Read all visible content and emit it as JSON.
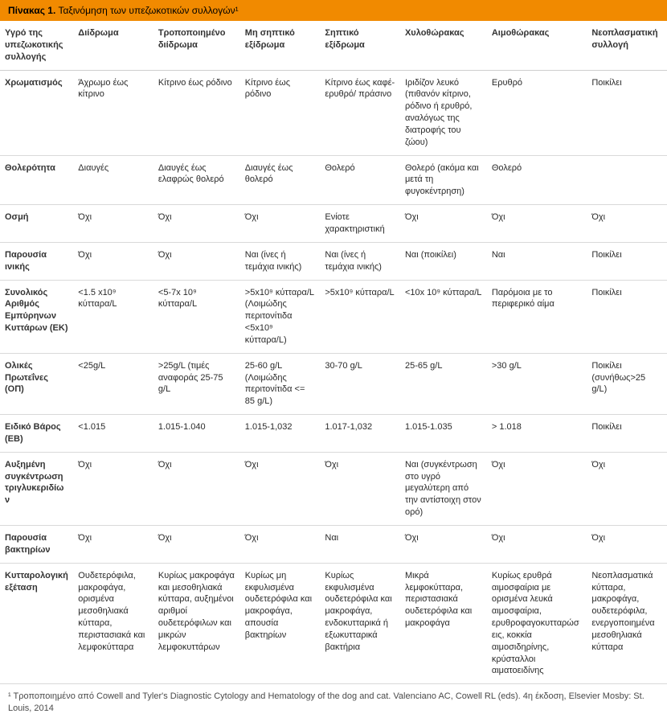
{
  "title_prefix": "Πίνακας 1.",
  "title_rest": "Ταξινόμηση των υπεζωκοτικών συλλογών¹",
  "columns": [
    "Υγρό της υπεζωκοτικής συλλογής",
    "Διίδρωμα",
    "Τροποποιημένο διίδρωμα",
    "Μη σηπτικό εξίδρωμα",
    "Σηπτικό εξίδρωμα",
    "Χυλοθώρακας",
    "Αιμοθώρακας",
    "Νεοπλασματική συλλογή"
  ],
  "rows": [
    {
      "label": "Χρωματισμός",
      "cells": [
        "Άχρωμο έως κίτρινο",
        "Κίτρινο έως ρόδινο",
        "Κίτρινο έως ρόδινο",
        "Κίτρινο έως καφέ-ερυθρό/ πράσινο",
        "Ιριδίζον λευκό (πιθανόν κίτρινο, ρόδινο ή ερυθρό, αναλόγως της διατροφής του ζώου)",
        "Ερυθρό",
        "Ποικίλει"
      ]
    },
    {
      "label": "Θολερότητα",
      "cells": [
        "Διαυγές",
        "Διαυγές έως ελαφρώς θολερό",
        "Διαυγές έως θολερό",
        "Θολερό",
        "Θολερό (ακόμα και μετά τη φυγοκέντρηση)",
        "Θολερό",
        ""
      ]
    },
    {
      "label": "Οσμή",
      "cells": [
        "Όχι",
        "Όχι",
        "Όχι",
        "Ενίοτε χαρακτηριστική",
        "Όχι",
        "Όχι",
        "Όχι"
      ]
    },
    {
      "label": "Παρουσία ινικής",
      "cells": [
        "Όχι",
        "Όχι",
        "Ναι (ίνες ή τεμάχια ινικής)",
        "Ναι (ίνες ή τεμάχια ινικής)",
        "Ναι (ποικίλει)",
        "Ναι",
        "Ποικίλει"
      ]
    },
    {
      "label": "Συνολικός Αριθμός Εμπύρηνων Κυττάρων (ΕΚ)",
      "cells": [
        "<1.5 x10⁹ κύτταρα/L",
        "<5-7x 10⁹ κύτταρα/L",
        ">5x10⁹ κύτταρα/L (Λοιμώδης περιτονίτιδα <5x10⁹ κύτταρα/L)",
        ">5x10⁹ κύτταρα/L",
        "<10x 10⁹  κύτταρα/L",
        "Παρόμοια με το περιφερικό αίμα",
        "Ποικίλει"
      ]
    },
    {
      "label": "Ολικές Πρωτεΐνες (ΟΠ)",
      "cells": [
        "<25g/L",
        ">25g/L (τιμές αναφοράς 25-75 g/L",
        "25-60 g/L (Λοιμώδης περιτονίτιδα <= 85 g/L)",
        "30-70 g/L",
        "25-65 g/L",
        ">30 g/L",
        "Ποικίλει (συνήθως>25 g/L)"
      ]
    },
    {
      "label": "Ειδικό Βάρος (ΕΒ)",
      "cells": [
        "<1.015",
        "1.015-1.040",
        "1.015-1,032",
        "1.017-1,032",
        "1.015-1.035",
        "> 1.018",
        "Ποικίλει"
      ]
    },
    {
      "label": "Αυξημένη συγκέντρωση τριγλυκεριδίων",
      "cells": [
        "Όχι",
        "Όχι",
        "Όχι",
        "Όχι",
        "Ναι (συγκέντρωση στο υγρό μεγαλύτερη από την αντίστοιχη στον ορό)",
        "Όχι",
        "Όχι"
      ]
    },
    {
      "label": "Παρουσία βακτηρίων",
      "cells": [
        "Όχι",
        "Όχι",
        "Όχι",
        "Ναι",
        "Όχι",
        "Όχι",
        "Όχι"
      ]
    },
    {
      "label": "Κυτταρολογική εξέταση",
      "cells": [
        "Ουδετερόφιλα, μακροφάγα, ορισμένα μεσοθηλιακά κύτταρα, περιστασιακά και λεμφοκύτταρα",
        "Κυρίως μακροφάγα και μεσοθηλιακά κύτταρα, αυξημένοι αριθμοί ουδετερόφιλων και μικρών λεμφοκυττάρων",
        "Κυρίως μη εκφυλισμένα ουδετερόφιλα και μακροφάγα, απουσία βακτηρίων",
        "Κυρίως εκφυλισμένα ουδετερόφιλα και μακροφάγα, ενδοκυτταρικά ή εξωκυτταρικά βακτήρια",
        "Μικρά λεμφοκύτταρα, περιστασιακά ουδετερόφιλα και μακροφάγα",
        "Κυρίως ερυθρά αιμοσφαίρια με ορισμένα λευκά αιμοσφαίρια, ερυθροφαγοκυτταρώσεις, κοκκία αιμοσιδηρίνης, κρύσταλλοι αιματοειδίνης",
        "Νεοπλασματικά κύτταρα, μακροφάγα, ουδετερόφιλα, ενεργοποιημένα μεσοθηλιακά κύτταρα"
      ]
    }
  ],
  "footnote": "¹ Τροποποιημένο από Cowell and Tyler's Diagnostic Cytology and Hematology of the dog and cat. Valenciano AC, Cowell RL (eds). 4η έκδοση, Elsevier Mosby: St. Louis, 2014"
}
